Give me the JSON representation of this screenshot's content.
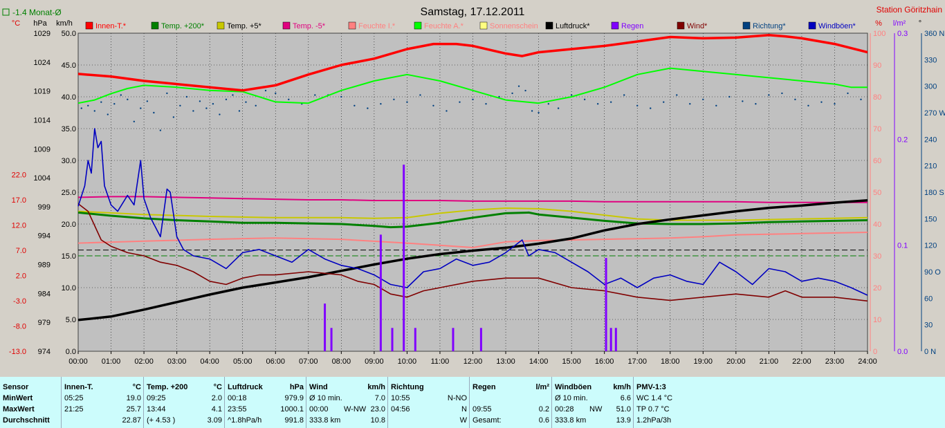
{
  "title": "Samstag, 17.12.2011",
  "station": "Station Göritzhain",
  "month_avg_label": "-1.4 Monat-Ø",
  "colors": {
    "plot_bg": "#c0c0c0",
    "innen": "#ff0000",
    "temp200": "#008000",
    "temp5": "#c8c800",
    "tempm5": "#e0007f",
    "feuchte_i": "#ff8080",
    "feuchte_a": "#00ff00",
    "sonnenschein": "#ffff80",
    "luftdruck": "#000000",
    "regen": "#8000ff",
    "wind": "#800000",
    "richtung": "#004080",
    "windboen": "#0000c0"
  },
  "chart_data": {
    "type": "line",
    "title": "Samstag, 17.12.2011",
    "x_range": [
      0,
      24
    ],
    "x_ticks": [
      "00:00",
      "01:00",
      "02:00",
      "03:00",
      "04:00",
      "05:00",
      "06:00",
      "07:00",
      "08:00",
      "09:00",
      "10:00",
      "11:00",
      "12:00",
      "13:00",
      "14:00",
      "15:00",
      "16:00",
      "17:00",
      "18:00",
      "19:00",
      "20:00",
      "21:00",
      "22:00",
      "23:00",
      "24:00"
    ],
    "axes": {
      "temp_c": {
        "unit": "°C",
        "range": [
          -13,
          50.0
        ],
        "ticks": [
          "22.0",
          "17.0",
          "12.0",
          "7.0",
          "2.0",
          "-3.0",
          "-8.0",
          "-13.0"
        ]
      },
      "pressure_hpa": {
        "unit": "hPa",
        "range": [
          974,
          1029
        ],
        "ticks": [
          "1029",
          "1024",
          "1019",
          "1014",
          "1009",
          "1004",
          "999",
          "994",
          "989",
          "984",
          "979",
          "974"
        ]
      },
      "speed_kmh": {
        "unit": "km/h",
        "range": [
          0,
          50
        ],
        "ticks": [
          "50.0",
          "45.0",
          "40.0",
          "35.0",
          "30.0",
          "25.0",
          "20.0",
          "15.0",
          "10.0",
          "5.0",
          "0.0"
        ]
      },
      "humidity_pct": {
        "unit": "%",
        "range": [
          0,
          100
        ],
        "ticks": [
          "100",
          "90",
          "80",
          "70",
          "60",
          "50",
          "40",
          "30",
          "20",
          "10",
          "0"
        ]
      },
      "rain_lm2": {
        "unit": "l/m²",
        "range": [
          0,
          0.3
        ],
        "ticks": [
          "0.3",
          "0.2",
          "0.1",
          "0.0"
        ]
      },
      "direction_deg": {
        "unit": "°",
        "range": [
          0,
          360
        ],
        "ticks": [
          "360 N",
          "330",
          "300",
          "270 W",
          "240",
          "210",
          "180 S",
          "150",
          "120",
          "90 O",
          "60",
          "30",
          "0 N"
        ]
      }
    },
    "legend": [
      {
        "key": "innen",
        "label": "Innen-T.*"
      },
      {
        "key": "temp200",
        "label": "Temp. +200*"
      },
      {
        "key": "temp5",
        "label": "Temp. +5*"
      },
      {
        "key": "tempm5",
        "label": "Temp. -5*"
      },
      {
        "key": "feuchte_i",
        "label": "Feuchte I.*"
      },
      {
        "key": "feuchte_a",
        "label": "Feuchte A.*"
      },
      {
        "key": "sonnenschein",
        "label": "Sonnenschein"
      },
      {
        "key": "luftdruck",
        "label": "Luftdruck*"
      },
      {
        "key": "regen",
        "label": "Regen"
      },
      {
        "key": "wind",
        "label": "Wind*"
      },
      {
        "key": "richtung",
        "label": "Richtung*"
      },
      {
        "key": "windboen",
        "label": "Windböen*"
      }
    ],
    "series": [
      {
        "key": "innen",
        "axis": "speed_kmh",
        "x": [
          0,
          1,
          2,
          3,
          4,
          5,
          6,
          7,
          8,
          9,
          10,
          10.8,
          11.5,
          12,
          13,
          13.5,
          14,
          15,
          16,
          17,
          18,
          19,
          20,
          21,
          21.5,
          22,
          23,
          24
        ],
        "y": [
          43.6,
          43.2,
          42.5,
          42.0,
          41.5,
          41.0,
          41.8,
          43.5,
          45.0,
          46.0,
          47.5,
          48.3,
          48.3,
          48.0,
          46.8,
          46.4,
          47.0,
          47.5,
          48.0,
          48.7,
          49.4,
          49.2,
          49.3,
          49.7,
          49.5,
          49.2,
          48.3,
          47.0
        ]
      },
      {
        "key": "feuchte_a",
        "axis": "speed_kmh",
        "x": [
          0,
          0.5,
          1,
          1.5,
          2,
          3,
          4,
          5,
          6,
          7,
          8,
          9,
          9.5,
          10,
          11,
          12,
          13,
          14,
          15,
          16,
          17,
          18,
          19,
          20,
          21,
          22,
          23,
          23.5,
          24
        ],
        "y": [
          39.0,
          39.5,
          40.5,
          41.3,
          41.8,
          41.5,
          41.0,
          40.8,
          39.2,
          39.0,
          41.0,
          42.5,
          43.0,
          43.5,
          42.5,
          41.0,
          39.5,
          39.0,
          40.0,
          41.5,
          43.5,
          44.5,
          44.0,
          43.5,
          43.0,
          42.5,
          42.0,
          41.5,
          41.5
        ]
      },
      {
        "key": "tempm5",
        "axis": "speed_kmh",
        "x": [
          0,
          1,
          2,
          3,
          4,
          5,
          6,
          7,
          8,
          9,
          10,
          11,
          12,
          13,
          14,
          15,
          16,
          17,
          18,
          19,
          20,
          21,
          22,
          23,
          24
        ],
        "y": [
          24.2,
          24.3,
          24.3,
          24.2,
          24.1,
          24.0,
          23.9,
          23.8,
          23.8,
          23.7,
          23.7,
          23.7,
          23.6,
          23.6,
          23.6,
          23.6,
          23.5,
          23.5,
          23.5,
          23.5,
          23.5,
          23.4,
          23.4,
          23.4,
          23.4
        ]
      },
      {
        "key": "temp5",
        "axis": "speed_kmh",
        "x": [
          0,
          2,
          4,
          6,
          8,
          9,
          10,
          11,
          12,
          13,
          14,
          15,
          16,
          17,
          18,
          20,
          22,
          24
        ],
        "y": [
          22.0,
          21.5,
          21.2,
          21.0,
          21.0,
          20.9,
          21.0,
          21.7,
          22.2,
          22.5,
          22.4,
          22.0,
          21.4,
          20.8,
          20.6,
          20.6,
          20.8,
          21.0
        ]
      },
      {
        "key": "temp200",
        "axis": "speed_kmh",
        "x": [
          0,
          1,
          2,
          3,
          4,
          5,
          6,
          7,
          8,
          9,
          9.5,
          10,
          11,
          12,
          13,
          13.7,
          14,
          15,
          16,
          17,
          18,
          19,
          20,
          21,
          22,
          23,
          24
        ],
        "y": [
          21.8,
          21.3,
          20.9,
          20.6,
          20.4,
          20.2,
          20.2,
          20.1,
          20.0,
          19.7,
          19.5,
          19.6,
          20.2,
          21.0,
          21.7,
          21.8,
          21.5,
          21.0,
          20.5,
          20.1,
          20.0,
          20.0,
          20.1,
          20.3,
          20.4,
          20.5,
          20.6
        ]
      },
      {
        "key": "feuchte_i",
        "axis": "speed_kmh",
        "x": [
          0,
          2,
          4,
          6,
          8,
          10,
          12,
          13,
          14,
          15,
          16,
          17,
          18,
          19,
          20,
          22,
          24
        ],
        "y": [
          17.0,
          17.3,
          17.6,
          17.8,
          17.6,
          17.0,
          16.3,
          17.2,
          17.4,
          17.5,
          17.6,
          17.7,
          17.8,
          18.0,
          18.3,
          18.5,
          18.7
        ]
      },
      {
        "key": "luftdruck",
        "axis": "pressure_hpa",
        "x": [
          0,
          1,
          2,
          3,
          4,
          5,
          6,
          7,
          8,
          9,
          10,
          11,
          12,
          13,
          14,
          15,
          16,
          17,
          18,
          19,
          20,
          21,
          22,
          23,
          24
        ],
        "y": [
          979.4,
          980.0,
          981.2,
          982.5,
          983.8,
          985.0,
          985.9,
          986.8,
          987.9,
          989.0,
          990.0,
          990.8,
          991.4,
          991.9,
          992.6,
          993.5,
          994.9,
          996.0,
          996.8,
          997.5,
          998.2,
          998.8,
          999.2,
          999.7,
          1000.1
        ]
      },
      {
        "key": "wind",
        "axis": "speed_kmh",
        "x": [
          0,
          0.3,
          0.7,
          1,
          1.5,
          2,
          2.5,
          3,
          3.5,
          4,
          4.5,
          5,
          5.5,
          6,
          7,
          8,
          8.5,
          9,
          9.5,
          10,
          10.5,
          11,
          12,
          13,
          14,
          15,
          16,
          17,
          18,
          19,
          20,
          21,
          21.5,
          22,
          23,
          24
        ],
        "y": [
          23.2,
          22.0,
          17.5,
          16.5,
          15.5,
          15.0,
          14.0,
          13.5,
          12.5,
          11.0,
          10.5,
          11.5,
          12.0,
          12.0,
          12.5,
          12.0,
          11.0,
          10.5,
          9.0,
          8.5,
          9.5,
          10.0,
          11.0,
          11.5,
          11.5,
          10.0,
          9.5,
          8.5,
          8.0,
          8.5,
          9.0,
          8.5,
          9.5,
          8.5,
          8.5,
          7.9
        ]
      },
      {
        "key": "windboen",
        "axis": "speed_kmh",
        "x": [
          0,
          0.2,
          0.3,
          0.4,
          0.5,
          0.6,
          0.7,
          0.8,
          1,
          1.2,
          1.5,
          1.7,
          1.9,
          2.0,
          2.2,
          2.5,
          2.7,
          2.8,
          3.0,
          3.2,
          3.5,
          4,
          4.5,
          5,
          5.5,
          6,
          6.5,
          7,
          7.5,
          8,
          8.5,
          9,
          9.5,
          10,
          10.5,
          11,
          11.5,
          12,
          12.5,
          13,
          13.5,
          13.7,
          14,
          14.5,
          15,
          15.5,
          16,
          16.5,
          17,
          17.5,
          18,
          18.5,
          19,
          19.5,
          20,
          20.5,
          21,
          21.5,
          22,
          22.5,
          23,
          23.5,
          24
        ],
        "y": [
          22.8,
          26.0,
          30.0,
          28.0,
          35.0,
          32.0,
          33.0,
          26.0,
          23.0,
          22.0,
          24.5,
          23.0,
          30.0,
          24.0,
          21.0,
          18.0,
          25.5,
          25.0,
          18.0,
          16.0,
          15.0,
          14.5,
          13.0,
          15.5,
          16.0,
          15.0,
          14.0,
          16.0,
          14.5,
          13.5,
          13.0,
          12.0,
          10.5,
          10.0,
          12.5,
          13.0,
          14.5,
          13.5,
          14.0,
          15.5,
          17.5,
          15.0,
          16.0,
          15.5,
          14.0,
          12.5,
          10.5,
          11.5,
          10.0,
          11.5,
          12.0,
          11.0,
          10.5,
          14.0,
          12.5,
          10.5,
          13.0,
          12.5,
          11.0,
          11.5,
          11.0,
          10.0,
          8.8
        ]
      },
      {
        "key": "regen",
        "axis": "rain_lm2",
        "type": "bar",
        "x": [
          7.5,
          7.7,
          9.2,
          9.55,
          9.9,
          10.25,
          11.4,
          12.25,
          16.05,
          16.2,
          16.35
        ],
        "y": [
          0.045,
          0.022,
          0.11,
          0.022,
          0.176,
          0.022,
          0.022,
          0.022,
          0.088,
          0.022,
          0.022
        ]
      }
    ],
    "direction_points": {
      "axis": "direction_deg",
      "x": [
        0.1,
        0.3,
        0.5,
        0.7,
        0.9,
        1.1,
        1.3,
        1.5,
        1.7,
        1.9,
        2.1,
        2.3,
        2.5,
        2.7,
        2.9,
        3.1,
        3.3,
        3.5,
        3.7,
        3.9,
        4.1,
        4.3,
        4.5,
        4.7,
        4.9,
        5.1,
        5.4,
        5.7,
        6.0,
        6.4,
        6.8,
        7.2,
        7.6,
        8.0,
        8.4,
        8.8,
        9.2,
        9.6,
        10.0,
        10.4,
        10.8,
        11.2,
        11.6,
        12.0,
        12.4,
        12.8,
        13.2,
        13.4,
        13.6,
        13.8,
        14.0,
        14.3,
        14.6,
        15.0,
        15.4,
        15.8,
        16.2,
        16.6,
        17.0,
        17.4,
        17.8,
        18.2,
        18.6,
        19.0,
        19.4,
        19.8,
        20.2,
        20.6,
        21.0,
        21.4,
        21.8,
        22.2,
        22.6,
        23.0,
        23.4,
        23.8
      ],
      "y": [
        275,
        278,
        272,
        282,
        268,
        280,
        290,
        285,
        260,
        275,
        283,
        270,
        250,
        292,
        265,
        278,
        288,
        272,
        283,
        275,
        280,
        268,
        285,
        290,
        272,
        282,
        278,
        295,
        292,
        285,
        280,
        290,
        290,
        288,
        278,
        275,
        280,
        285,
        282,
        290,
        278,
        272,
        282,
        285,
        280,
        288,
        292,
        300,
        295,
        272,
        270,
        280,
        275,
        290,
        285,
        280,
        282,
        290,
        278,
        275,
        282,
        290,
        280,
        285,
        278,
        288,
        283,
        280,
        290,
        292,
        285,
        278,
        282,
        280,
        292,
        285
      ]
    },
    "reference_lines": [
      {
        "axis": "pressure_hpa",
        "value": 991.5,
        "color": "#000000",
        "style": "dashed"
      },
      {
        "axis": "speed_kmh",
        "value": 15.0,
        "color": "#008000",
        "style": "dashed"
      }
    ]
  },
  "stats": {
    "columns": [
      {
        "rows": [
          [
            "Sensor",
            "",
            ""
          ],
          [
            "MinWert",
            "",
            ""
          ],
          [
            "MaxWert",
            "",
            ""
          ],
          [
            "Durchschnitt",
            "",
            ""
          ]
        ]
      },
      {
        "rows": [
          [
            "Innen-T.",
            "",
            "°C"
          ],
          [
            "05:25",
            "",
            "19.0"
          ],
          [
            "21:25",
            "",
            "25.7"
          ],
          [
            "",
            "",
            "22.87"
          ]
        ]
      },
      {
        "rows": [
          [
            "Temp. +200",
            "",
            "°C"
          ],
          [
            "09:25",
            "",
            "2.0"
          ],
          [
            "13:44",
            "",
            "4.1"
          ],
          [
            "(+ 4.53 )",
            "",
            "3.09"
          ]
        ]
      },
      {
        "rows": [
          [
            "Luftdruck",
            "",
            "hPa"
          ],
          [
            "00:18",
            "",
            "979.9"
          ],
          [
            "23:55",
            "",
            "1000.1"
          ],
          [
            "^1.8hPa/h",
            "",
            "991.8"
          ]
        ]
      },
      {
        "rows": [
          [
            "Wind",
            "",
            "km/h"
          ],
          [
            "Ø 10 min.",
            "",
            "7.0"
          ],
          [
            "00:00",
            "W-NW",
            "23.0"
          ],
          [
            "333.8 km",
            "",
            "10.8"
          ]
        ]
      },
      {
        "rows": [
          [
            "Richtung",
            "",
            ""
          ],
          [
            "10:55",
            "",
            "N-NO"
          ],
          [
            "04:56",
            "",
            "N"
          ],
          [
            "",
            "",
            "W"
          ]
        ]
      },
      {
        "rows": [
          [
            "Regen",
            "",
            "l/m²"
          ],
          [
            "",
            "",
            ""
          ],
          [
            "09:55",
            "",
            "0.2"
          ],
          [
            "Gesamt:",
            "",
            "0.6"
          ]
        ]
      },
      {
        "rows": [
          [
            "Windböen",
            "",
            "km/h"
          ],
          [
            "Ø 10 min.",
            "",
            "6.6"
          ],
          [
            "00:28",
            "NW",
            "51.0"
          ],
          [
            "333.8 km",
            "",
            "13.9"
          ]
        ]
      },
      {
        "rows": [
          [
            "PMV-1:3",
            "",
            ""
          ],
          [
            "WC 1.4 °C",
            "",
            ""
          ],
          [
            "TP 0.7 °C",
            "",
            ""
          ],
          [
            "1.2hPa/3h",
            "",
            ""
          ]
        ]
      }
    ]
  }
}
